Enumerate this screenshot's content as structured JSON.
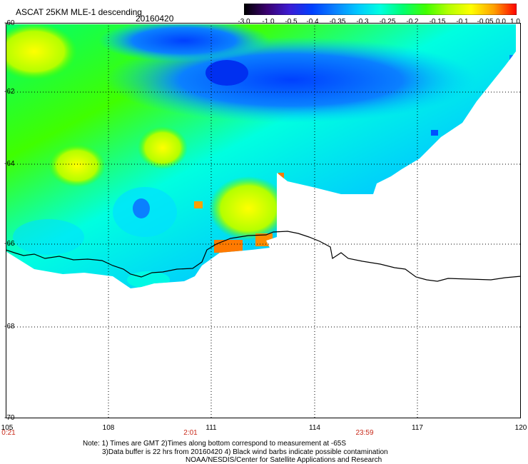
{
  "header": {
    "title": "ASCAT 25KM MLE-1 descending",
    "date": "20160420"
  },
  "colorbar": {
    "labels": [
      "-3.0",
      "-1.0",
      "-0.5",
      "-0.4",
      "-0.35",
      "-0.3",
      "-0.25",
      "-0.2",
      "-0.15",
      "-0.1",
      "-0.05",
      "0.0",
      "1.0"
    ],
    "stops": [
      "#000000",
      "#3a006e",
      "#3c1cd4",
      "#0040ff",
      "#0a80ff",
      "#00c8ff",
      "#00ffe0",
      "#00ff70",
      "#40ff00",
      "#b4ff00",
      "#ffff00",
      "#ffa000",
      "#ff0000"
    ]
  },
  "axes": {
    "lat_labels": [
      "-60",
      "-62",
      "-64",
      "-66",
      "-68",
      "-70"
    ],
    "lon_labels": [
      "105",
      "108",
      "111",
      "114",
      "117",
      "120"
    ],
    "lat_range": [
      -70,
      -60
    ],
    "lon_range": [
      105,
      120
    ]
  },
  "times": [
    "0:21",
    "2:01",
    "23:59"
  ],
  "notes": {
    "line1": "Note: 1) Times are GMT 2)Times along bottom correspond to measurement at -65S",
    "line2": "3)Data buffer is 22 hrs from 20160420 4) Black wind barbs indicate possible contamination",
    "line3": "NOAA/NESDIS/Center for Satellite Applications and Research"
  },
  "colors": {
    "grid": "#000000",
    "coastline": "#000000",
    "time_labels": "#c82a1a"
  }
}
